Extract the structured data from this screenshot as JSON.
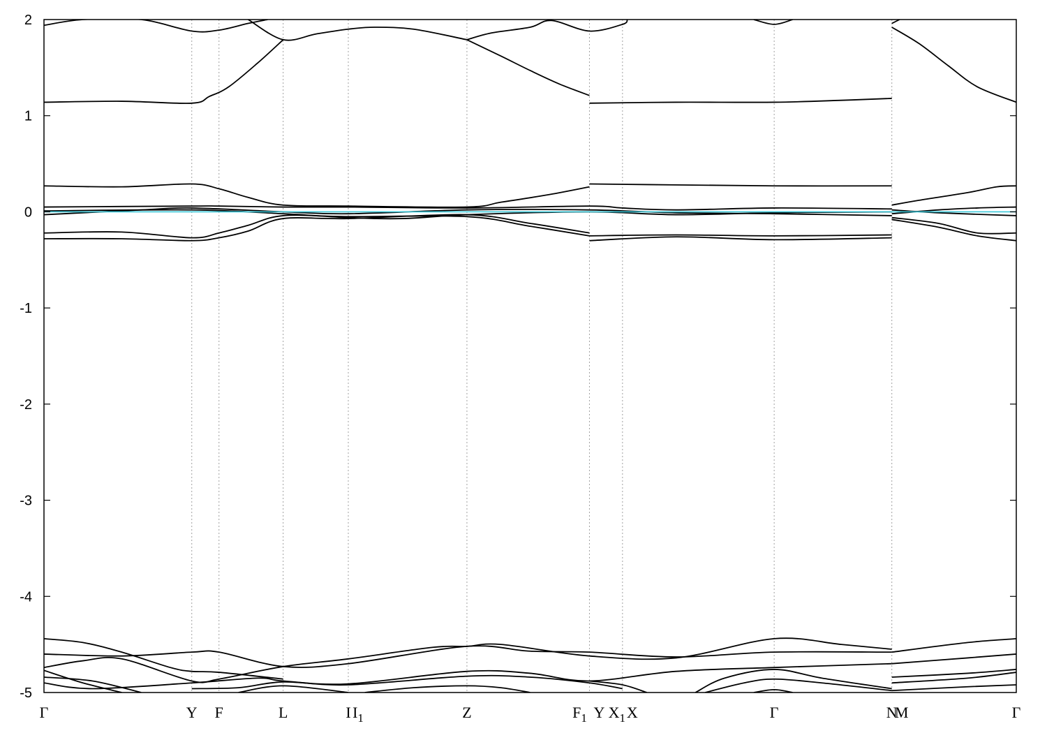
{
  "chart_data": {
    "type": "line",
    "title": "",
    "xlabel": "",
    "ylabel": "",
    "ylim": [
      -5,
      2
    ],
    "y_ticks": [
      2,
      1,
      0,
      -1,
      -2,
      -3,
      -4,
      -5
    ],
    "y_tick_labels": [
      "2",
      "1",
      "0",
      "-1",
      "-2",
      "-3",
      "-4",
      "-5"
    ],
    "grid": "vertical dotted lines at high-symmetry points",
    "legend": "none",
    "x_range": [
      0,
      1
    ],
    "kpoints": [
      {
        "label": "Γ",
        "x": 0.0,
        "sub": ""
      },
      {
        "label": "Y",
        "x": 0.152,
        "sub": ""
      },
      {
        "label": "F",
        "x": 0.18,
        "sub": ""
      },
      {
        "label": "L",
        "x": 0.246,
        "sub": ""
      },
      {
        "label": "I",
        "x": 0.313,
        "sub": ""
      },
      {
        "label": "I",
        "x": 0.313,
        "sub": "1",
        "second": true
      },
      {
        "label": "Z",
        "x": 0.435,
        "sub": ""
      },
      {
        "label": "F",
        "x": 0.561,
        "sub": "1"
      },
      {
        "label": "Y",
        "x": 0.561,
        "sub": "",
        "second": true
      },
      {
        "label": "X",
        "x": 0.595,
        "sub": "1",
        "first": true
      },
      {
        "label": "X",
        "x": 0.595,
        "sub": "",
        "second": true
      },
      {
        "label": "Γ",
        "x": 0.751,
        "sub": ""
      },
      {
        "label": "N",
        "x": 0.872,
        "sub": ""
      },
      {
        "label": "M",
        "x": 0.872,
        "sub": "",
        "second": true
      },
      {
        "label": "Γ",
        "x": 1.0,
        "sub": ""
      }
    ],
    "colors": {
      "bands": "#000000",
      "fermi_level": "#39c7d8",
      "grid": "#a0a0a0",
      "axes": "#000000"
    },
    "series": [
      {
        "color": "#000000",
        "points": [
          [
            0,
            1.14
          ],
          [
            0.08,
            1.15
          ],
          [
            0.152,
            1.13
          ],
          [
            0.17,
            1.2
          ],
          [
            0.19,
            1.3
          ],
          [
            0.22,
            1.55
          ],
          [
            0.246,
            1.79
          ]
        ]
      },
      {
        "color": "#000000",
        "points": [
          [
            0,
            1.94
          ],
          [
            0.04,
            2.0
          ],
          [
            0.1,
            2.0
          ],
          [
            0.152,
            1.88
          ],
          [
            0.18,
            1.89
          ],
          [
            0.21,
            1.96
          ],
          [
            0.23,
            2.0
          ]
        ]
      },
      {
        "color": "#000000",
        "points": [
          [
            0.21,
            2.0
          ],
          [
            0.246,
            1.79
          ],
          [
            0.28,
            1.85
          ],
          [
            0.313,
            1.9
          ],
          [
            0.34,
            1.92
          ],
          [
            0.38,
            1.9
          ],
          [
            0.435,
            1.79
          ]
        ]
      },
      {
        "color": "#000000",
        "points": [
          [
            0.435,
            1.79
          ],
          [
            0.46,
            1.86
          ],
          [
            0.5,
            1.92
          ],
          [
            0.522,
            1.99
          ],
          [
            0.561,
            1.88
          ],
          [
            0.595,
            1.95
          ],
          [
            0.6,
            2.0
          ]
        ]
      },
      {
        "color": "#000000",
        "points": [
          [
            0.435,
            1.79
          ],
          [
            0.47,
            1.62
          ],
          [
            0.5,
            1.47
          ],
          [
            0.53,
            1.33
          ],
          [
            0.561,
            1.21
          ]
        ]
      },
      {
        "color": "#000000",
        "points": [
          [
            0.561,
            1.13
          ],
          [
            0.65,
            1.14
          ],
          [
            0.751,
            1.14
          ],
          [
            0.82,
            1.16
          ],
          [
            0.872,
            1.18
          ]
        ]
      },
      {
        "color": "#000000",
        "points": [
          [
            0.73,
            2.0
          ],
          [
            0.751,
            1.95
          ],
          [
            0.77,
            2.0
          ]
        ]
      },
      {
        "color": "#000000",
        "points": [
          [
            0.872,
            1.96
          ],
          [
            0.88,
            2.0
          ]
        ]
      },
      {
        "color": "#000000",
        "points": [
          [
            0.872,
            1.92
          ],
          [
            0.9,
            1.75
          ],
          [
            0.93,
            1.52
          ],
          [
            0.96,
            1.3
          ],
          [
            1.0,
            1.14
          ]
        ]
      },
      {
        "color": "#000000",
        "points": [
          [
            0,
            0.27
          ],
          [
            0.08,
            0.26
          ],
          [
            0.152,
            0.29
          ],
          [
            0.18,
            0.24
          ],
          [
            0.21,
            0.15
          ],
          [
            0.246,
            0.07
          ],
          [
            0.313,
            0.06
          ],
          [
            0.435,
            0.05
          ],
          [
            0.47,
            0.1
          ],
          [
            0.52,
            0.18
          ],
          [
            0.561,
            0.26
          ]
        ]
      },
      {
        "color": "#000000",
        "points": [
          [
            0.561,
            0.29
          ],
          [
            0.65,
            0.28
          ],
          [
            0.751,
            0.27
          ],
          [
            0.872,
            0.27
          ]
        ]
      },
      {
        "color": "#000000",
        "points": [
          [
            0.872,
            0.07
          ],
          [
            0.9,
            0.12
          ],
          [
            0.95,
            0.2
          ],
          [
            0.98,
            0.26
          ],
          [
            1.0,
            0.27
          ]
        ]
      },
      {
        "color": "#000000",
        "points": [
          [
            0,
            0.05
          ],
          [
            0.152,
            0.06
          ],
          [
            0.18,
            0.06
          ],
          [
            0.246,
            0.05
          ],
          [
            0.313,
            0.05
          ],
          [
            0.435,
            0.04
          ],
          [
            0.561,
            0.06
          ],
          [
            0.595,
            0.04
          ],
          [
            0.65,
            0.02
          ],
          [
            0.751,
            0.04
          ],
          [
            0.872,
            0.03
          ]
        ]
      },
      {
        "color": "#000000",
        "points": [
          [
            0,
            -0.03
          ],
          [
            0.1,
            0.02
          ],
          [
            0.152,
            0.04
          ],
          [
            0.246,
            0.0
          ],
          [
            0.313,
            -0.02
          ],
          [
            0.435,
            0.02
          ],
          [
            0.561,
            0.02
          ],
          [
            0.65,
            -0.01
          ],
          [
            0.751,
            -0.02
          ],
          [
            0.872,
            -0.04
          ]
        ]
      },
      {
        "color": "#000000",
        "points": [
          [
            0.872,
            -0.02
          ],
          [
            0.92,
            0.02
          ],
          [
            0.96,
            0.04
          ],
          [
            1.0,
            0.05
          ]
        ]
      },
      {
        "color": "#000000",
        "points": [
          [
            0.872,
            0.02
          ],
          [
            0.92,
            -0.01
          ],
          [
            1.0,
            -0.04
          ]
        ]
      },
      {
        "color": "#000000",
        "points": [
          [
            0,
            0.01
          ],
          [
            0.152,
            0.02
          ],
          [
            0.246,
            -0.02
          ],
          [
            0.313,
            -0.06
          ],
          [
            0.37,
            -0.07
          ],
          [
            0.435,
            -0.03
          ],
          [
            0.561,
            0.0
          ],
          [
            0.65,
            -0.03
          ],
          [
            0.751,
            -0.01
          ],
          [
            0.872,
            0.0
          ]
        ]
      },
      {
        "color": "#000000",
        "points": [
          [
            0,
            -0.22
          ],
          [
            0.08,
            -0.21
          ],
          [
            0.152,
            -0.27
          ],
          [
            0.18,
            -0.22
          ],
          [
            0.21,
            -0.14
          ],
          [
            0.246,
            -0.04
          ],
          [
            0.313,
            -0.05
          ],
          [
            0.435,
            -0.05
          ],
          [
            0.5,
            -0.15
          ],
          [
            0.561,
            -0.25
          ]
        ]
      },
      {
        "color": "#000000",
        "points": [
          [
            0,
            -0.28
          ],
          [
            0.08,
            -0.28
          ],
          [
            0.152,
            -0.3
          ],
          [
            0.18,
            -0.27
          ],
          [
            0.21,
            -0.2
          ],
          [
            0.246,
            -0.07
          ],
          [
            0.313,
            -0.07
          ],
          [
            0.435,
            -0.03
          ],
          [
            0.5,
            -0.12
          ],
          [
            0.561,
            -0.22
          ]
        ]
      },
      {
        "color": "#000000",
        "points": [
          [
            0.561,
            -0.3
          ],
          [
            0.65,
            -0.26
          ],
          [
            0.751,
            -0.29
          ],
          [
            0.872,
            -0.27
          ]
        ]
      },
      {
        "color": "#000000",
        "points": [
          [
            0.561,
            -0.25
          ],
          [
            0.65,
            -0.24
          ],
          [
            0.751,
            -0.25
          ],
          [
            0.872,
            -0.24
          ]
        ]
      },
      {
        "color": "#000000",
        "points": [
          [
            0.872,
            -0.06
          ],
          [
            0.92,
            -0.12
          ],
          [
            0.96,
            -0.22
          ],
          [
            1.0,
            -0.22
          ]
        ]
      },
      {
        "color": "#000000",
        "points": [
          [
            0.872,
            -0.08
          ],
          [
            0.92,
            -0.16
          ],
          [
            0.96,
            -0.25
          ],
          [
            1.0,
            -0.3
          ]
        ]
      },
      {
        "color": "#000000",
        "points": [
          [
            0,
            -4.44
          ],
          [
            0.04,
            -4.48
          ],
          [
            0.08,
            -4.58
          ],
          [
            0.13,
            -4.74
          ],
          [
            0.152,
            -4.78
          ],
          [
            0.18,
            -4.79
          ],
          [
            0.246,
            -4.86
          ]
        ]
      },
      {
        "color": "#000000",
        "points": [
          [
            0,
            -4.6
          ],
          [
            0.08,
            -4.62
          ],
          [
            0.152,
            -4.58
          ],
          [
            0.18,
            -4.58
          ],
          [
            0.246,
            -4.73
          ],
          [
            0.313,
            -4.7
          ],
          [
            0.435,
            -4.52
          ],
          [
            0.5,
            -4.57
          ],
          [
            0.561,
            -4.58
          ],
          [
            0.65,
            -4.63
          ],
          [
            0.751,
            -4.58
          ],
          [
            0.872,
            -4.58
          ]
        ]
      },
      {
        "color": "#000000",
        "points": [
          [
            0,
            -4.74
          ],
          [
            0.04,
            -4.67
          ],
          [
            0.08,
            -4.65
          ],
          [
            0.152,
            -4.88
          ],
          [
            0.18,
            -4.86
          ],
          [
            0.246,
            -4.73
          ],
          [
            0.313,
            -4.65
          ],
          [
            0.4,
            -4.53
          ],
          [
            0.435,
            -4.52
          ],
          [
            0.47,
            -4.5
          ],
          [
            0.561,
            -4.62
          ],
          [
            0.65,
            -4.64
          ],
          [
            0.751,
            -4.44
          ],
          [
            0.82,
            -4.5
          ],
          [
            0.872,
            -4.55
          ]
        ]
      },
      {
        "color": "#000000",
        "points": [
          [
            0,
            -4.77
          ],
          [
            0.04,
            -4.9
          ],
          [
            0.08,
            -5.0
          ]
        ]
      },
      {
        "color": "#000000",
        "points": [
          [
            0,
            -4.84
          ],
          [
            0.05,
            -4.88
          ],
          [
            0.1,
            -5.0
          ]
        ]
      },
      {
        "color": "#000000",
        "points": [
          [
            0,
            -4.9
          ],
          [
            0.05,
            -4.96
          ],
          [
            0.152,
            -4.9
          ],
          [
            0.22,
            -4.85
          ],
          [
            0.246,
            -4.88
          ],
          [
            0.313,
            -4.91
          ],
          [
            0.435,
            -4.78
          ],
          [
            0.5,
            -4.8
          ],
          [
            0.561,
            -4.88
          ],
          [
            0.65,
            -4.78
          ],
          [
            0.751,
            -4.74
          ],
          [
            0.872,
            -4.7
          ]
        ]
      },
      {
        "color": "#000000",
        "points": [
          [
            0.152,
            -4.96
          ],
          [
            0.2,
            -4.95
          ],
          [
            0.246,
            -4.89
          ],
          [
            0.313,
            -4.92
          ],
          [
            0.435,
            -4.83
          ],
          [
            0.5,
            -4.84
          ],
          [
            0.561,
            -4.9
          ],
          [
            0.595,
            -4.96
          ]
        ]
      },
      {
        "color": "#000000",
        "points": [
          [
            0.2,
            -5.0
          ],
          [
            0.246,
            -4.93
          ],
          [
            0.313,
            -5.0
          ]
        ]
      },
      {
        "color": "#000000",
        "points": [
          [
            0.33,
            -5.0
          ],
          [
            0.38,
            -4.95
          ],
          [
            0.435,
            -4.93
          ],
          [
            0.47,
            -4.95
          ],
          [
            0.5,
            -5.0
          ]
        ]
      },
      {
        "color": "#000000",
        "points": [
          [
            0.561,
            -4.88
          ],
          [
            0.595,
            -4.92
          ],
          [
            0.62,
            -5.0
          ]
        ]
      },
      {
        "color": "#000000",
        "points": [
          [
            0.67,
            -5.0
          ],
          [
            0.7,
            -4.85
          ],
          [
            0.751,
            -4.76
          ],
          [
            0.8,
            -4.85
          ],
          [
            0.872,
            -4.96
          ]
        ]
      },
      {
        "color": "#000000",
        "points": [
          [
            0.68,
            -5.0
          ],
          [
            0.72,
            -4.9
          ],
          [
            0.751,
            -4.86
          ],
          [
            0.8,
            -4.9
          ],
          [
            0.872,
            -4.98
          ]
        ]
      },
      {
        "color": "#000000",
        "points": [
          [
            0.73,
            -5.0
          ],
          [
            0.751,
            -4.97
          ],
          [
            0.77,
            -5.0
          ]
        ]
      },
      {
        "color": "#000000",
        "points": [
          [
            0.872,
            -4.58
          ],
          [
            0.95,
            -4.48
          ],
          [
            1.0,
            -4.44
          ]
        ]
      },
      {
        "color": "#000000",
        "points": [
          [
            0.872,
            -4.7
          ],
          [
            0.95,
            -4.64
          ],
          [
            1.0,
            -4.6
          ]
        ]
      },
      {
        "color": "#000000",
        "points": [
          [
            0.872,
            -4.84
          ],
          [
            0.95,
            -4.8
          ],
          [
            1.0,
            -4.76
          ]
        ]
      },
      {
        "color": "#000000",
        "points": [
          [
            0.872,
            -4.9
          ],
          [
            0.95,
            -4.85
          ],
          [
            1.0,
            -4.79
          ]
        ]
      },
      {
        "color": "#000000",
        "points": [
          [
            0.872,
            -4.98
          ],
          [
            0.95,
            -4.94
          ],
          [
            1.0,
            -4.92
          ]
        ]
      },
      {
        "color": "#39c7d8",
        "points": [
          [
            0,
            0.0
          ],
          [
            1.0,
            0.0
          ]
        ]
      }
    ]
  }
}
